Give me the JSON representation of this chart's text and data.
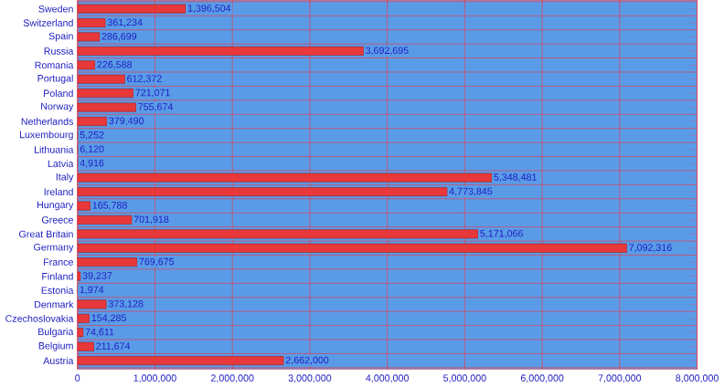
{
  "chart_data": {
    "type": "bar",
    "orientation": "horizontal",
    "color": "#e8383a",
    "grid": true,
    "value_labels": [
      "1,396,504",
      "361,234",
      "286,699",
      "3,692,695",
      "226,588",
      "612,372",
      "721,071",
      "755,674",
      "379,490",
      "5,252",
      "6,120",
      "4,916",
      "5,348,481",
      "4,773,845",
      "165,788",
      "701,918",
      "5,171,066",
      "7,092,316",
      "769,675",
      "39,237",
      "1,974",
      "373,128",
      "154,285",
      "74,611",
      "211,674",
      "2,662,000"
    ],
    "categories": [
      "Sweden",
      "Switzerland",
      "Spain",
      "Russia",
      "Romania",
      "Portugal",
      "Poland",
      "Norway",
      "Netherlands",
      "Luxembourg",
      "Lithuania",
      "Latvia",
      "Italy",
      "Ireland",
      "Hungary",
      "Greece",
      "Great Britain",
      "Germany",
      "France",
      "Finland",
      "Estonia",
      "Denmark",
      "Czechoslovakia",
      "Bulgaria",
      "Belgium",
      "Austria"
    ],
    "values": [
      1396504,
      361234,
      286699,
      3692695,
      226588,
      612372,
      721071,
      755674,
      379490,
      5252,
      6120,
      4916,
      5348481,
      4773845,
      165788,
      701918,
      5171066,
      7092316,
      769675,
      39237,
      1974,
      373128,
      154285,
      74611,
      211674,
      2662000
    ],
    "xlim": [
      0,
      8000000
    ],
    "xticks": [
      {
        "value": 0,
        "label": "0"
      },
      {
        "value": 1000000,
        "label": "1,000,000"
      },
      {
        "value": 2000000,
        "label": "2,000,000"
      },
      {
        "value": 3000000,
        "label": "3,000,000"
      },
      {
        "value": 4000000,
        "label": "4,000,000"
      },
      {
        "value": 5000000,
        "label": "5,000,000"
      },
      {
        "value": 6000000,
        "label": "6,000,000"
      },
      {
        "value": 7000000,
        "label": "7,000,000"
      },
      {
        "value": 8000000,
        "label": "8,000,000"
      }
    ]
  }
}
